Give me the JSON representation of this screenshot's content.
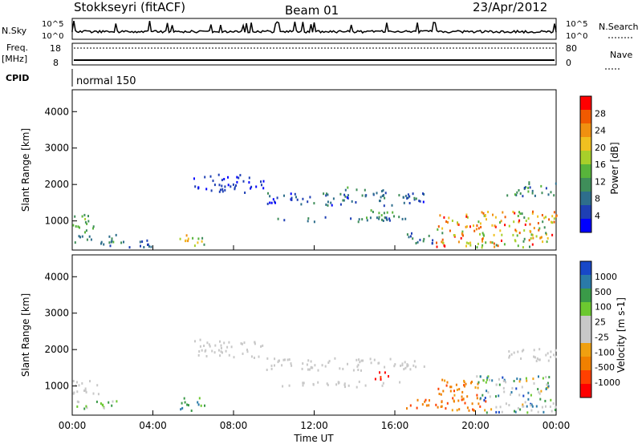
{
  "header": {
    "station": "Stokkseyri (fitACF)",
    "beam": "Beam 01",
    "date": "23/Apr/2012"
  },
  "status_panels": {
    "nsky_label": "N.Sky",
    "nsearch_label": "N.Search",
    "nsky_ticks": [
      "10^5",
      "10^0"
    ],
    "nsearch_ticks": [
      "10^5",
      "10^0"
    ],
    "freq_label": "Freq.",
    "freq_unit": "[MHz]",
    "freq_ticks": [
      "18",
      "8"
    ],
    "nave_label": "Nave",
    "nave_ticks": [
      "80",
      "0"
    ],
    "cpid_label": "CPID",
    "cpid_value": "normal 150"
  },
  "colors": {
    "power": [
      "#0000ff",
      "#1e3fb4",
      "#2e6e8c",
      "#3f8e5a",
      "#58b43b",
      "#a8cf2a",
      "#f0c020",
      "#f09010",
      "#f05a00",
      "#ff0000"
    ],
    "velocity": [
      "#1848c8",
      "#2a7aa8",
      "#3a9a48",
      "#6cc830",
      "#c8c8c8",
      "#c8c8c8",
      "#f0a010",
      "#f08000",
      "#ff4000",
      "#ff0000"
    ],
    "sky_line": "#000000"
  },
  "chart_data": [
    {
      "type": "heatmap",
      "title": "Power",
      "ylabel": "Slant Range [km]",
      "ylim": [
        200,
        4600
      ],
      "yticks": [
        "1000",
        "2000",
        "3000",
        "4000"
      ],
      "colorbar_label": "Power [dB]",
      "colorbar_ticks": [
        "4",
        "8",
        "12",
        "16",
        "20",
        "24",
        "28"
      ],
      "echo_regions": [
        {
          "t0": 0.0,
          "t1": 1.3,
          "r0": 700,
          "r1": 1200,
          "v0": 10,
          "v1": 16
        },
        {
          "t0": 0.0,
          "t1": 2.5,
          "r0": 400,
          "r1": 650,
          "v0": 6,
          "v1": 14
        },
        {
          "t0": 1.5,
          "t1": 4.2,
          "r0": 300,
          "r1": 500,
          "v0": 4,
          "v1": 8
        },
        {
          "t0": 5.3,
          "t1": 6.6,
          "r0": 300,
          "r1": 700,
          "v0": 8,
          "v1": 24
        },
        {
          "t0": 6.0,
          "t1": 9.5,
          "r0": 1800,
          "r1": 2300,
          "v0": 2,
          "v1": 6
        },
        {
          "t0": 9.5,
          "t1": 17.5,
          "r0": 1450,
          "r1": 1800,
          "v0": 2,
          "v1": 10
        },
        {
          "t0": 10.0,
          "t1": 16.5,
          "r0": 1000,
          "r1": 1150,
          "v0": 4,
          "v1": 10
        },
        {
          "t0": 13.5,
          "t1": 15.5,
          "r0": 1650,
          "r1": 1950,
          "v0": 6,
          "v1": 14
        },
        {
          "t0": 14.5,
          "t1": 16.0,
          "r0": 1050,
          "r1": 1350,
          "v0": 8,
          "v1": 16
        },
        {
          "t0": 16.5,
          "t1": 18.5,
          "r0": 400,
          "r1": 700,
          "v0": 4,
          "v1": 12
        },
        {
          "t0": 18.0,
          "t1": 20.5,
          "r0": 300,
          "r1": 1200,
          "v0": 12,
          "v1": 30
        },
        {
          "t0": 20.0,
          "t1": 24.0,
          "r0": 300,
          "r1": 1300,
          "v0": 10,
          "v1": 30
        },
        {
          "t0": 21.5,
          "t1": 24.0,
          "r0": 1700,
          "r1": 2100,
          "v0": 4,
          "v1": 14
        }
      ]
    },
    {
      "type": "heatmap",
      "title": "Velocity",
      "ylabel": "Slant Range [km]",
      "ylim": [
        200,
        4600
      ],
      "yticks": [
        "1000",
        "2000",
        "3000",
        "4000"
      ],
      "colorbar_label": "Velocity [m s-1]",
      "colorbar_ticks": [
        "1000",
        "500",
        "100",
        "25",
        "-25",
        "-100",
        "-500",
        "-1000"
      ],
      "echo_regions": [
        {
          "t0": 0.0,
          "t1": 1.3,
          "r0": 700,
          "r1": 1200,
          "v0": 5,
          "v1": 5
        },
        {
          "t0": 0.0,
          "t1": 2.5,
          "r0": 400,
          "r1": 650,
          "v0": 2,
          "v1": 4
        },
        {
          "t0": 5.3,
          "t1": 6.6,
          "r0": 300,
          "r1": 700,
          "v0": 1,
          "v1": 3
        },
        {
          "t0": 6.0,
          "t1": 9.5,
          "r0": 1800,
          "r1": 2300,
          "v0": 5,
          "v1": 5
        },
        {
          "t0": 9.5,
          "t1": 17.5,
          "r0": 1450,
          "r1": 1800,
          "v0": 5,
          "v1": 5
        },
        {
          "t0": 10.0,
          "t1": 16.5,
          "r0": 1000,
          "r1": 1150,
          "v0": 5,
          "v1": 5
        },
        {
          "t0": 15.0,
          "t1": 15.8,
          "r0": 1150,
          "r1": 1450,
          "v0": 8,
          "v1": 9
        },
        {
          "t0": 16.5,
          "t1": 18.5,
          "r0": 400,
          "r1": 700,
          "v0": 7,
          "v1": 8
        },
        {
          "t0": 18.0,
          "t1": 20.5,
          "r0": 300,
          "r1": 1200,
          "v0": 6,
          "v1": 8
        },
        {
          "t0": 20.0,
          "t1": 24.0,
          "r0": 300,
          "r1": 1300,
          "v0": 0,
          "v1": 6
        },
        {
          "t0": 21.5,
          "t1": 24.0,
          "r0": 1700,
          "r1": 2100,
          "v0": 5,
          "v1": 5
        }
      ]
    }
  ],
  "x_axis": {
    "label": "Time UT",
    "ticks": [
      "00:00",
      "04:00",
      "08:00",
      "12:00",
      "16:00",
      "20:00",
      "00:00"
    ]
  }
}
